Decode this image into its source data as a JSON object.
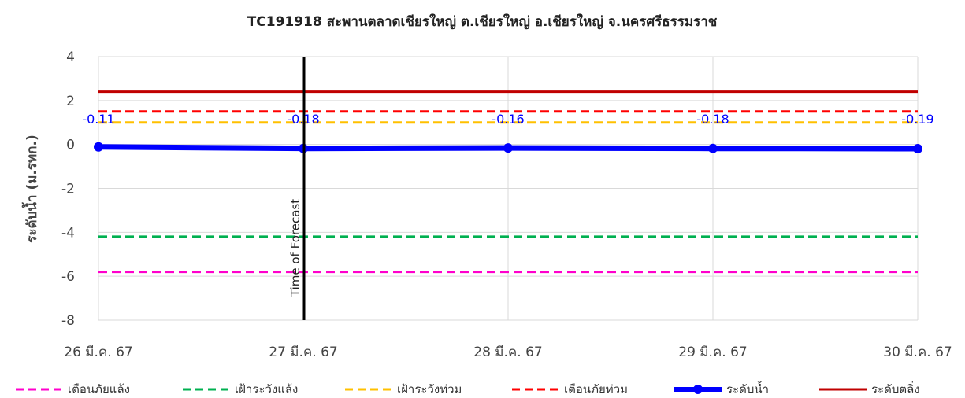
{
  "chart_data": {
    "type": "line",
    "title": "TC191918 สะพานตลาดเชียรใหญ่ ต.เชียรใหญ่ อ.เชียรใหญ่ จ.นครศรีธรรมราช",
    "xlabel": "",
    "ylabel": "ระดับน้ำ (ม.รทก.)",
    "categories": [
      "26 มี.ค. 67",
      "27 มี.ค. 67",
      "28 มี.ค. 67",
      "29 มี.ค. 67",
      "30 มี.ค. 67"
    ],
    "yticks": [
      4,
      2,
      0,
      -2,
      -4,
      -6,
      -8
    ],
    "ylim": [
      -8,
      4
    ],
    "grid": true,
    "legend_position": "bottom",
    "annotation": "Time of Forecast",
    "forecast_index": 1,
    "series": [
      {
        "name": "เตือนภัยแล้ง",
        "values": [
          -5.8,
          -5.8,
          -5.8,
          -5.8,
          -5.8
        ],
        "color": "#ff00cc",
        "style": "dashed"
      },
      {
        "name": "เฝ้าระวังแล้ง",
        "values": [
          -4.2,
          -4.2,
          -4.2,
          -4.2,
          -4.2
        ],
        "color": "#00b050",
        "style": "dashed"
      },
      {
        "name": "เฝ้าระวังท่วม",
        "values": [
          1.0,
          1.0,
          1.0,
          1.0,
          1.0
        ],
        "color": "#ffc000",
        "style": "dashed"
      },
      {
        "name": "เตือนภัยท่วม",
        "values": [
          1.5,
          1.5,
          1.5,
          1.5,
          1.5
        ],
        "color": "#ff0000",
        "style": "dashed"
      },
      {
        "name": "ระดับน้ำ",
        "values": [
          -0.11,
          -0.18,
          -0.16,
          -0.18,
          -0.19
        ],
        "labels": [
          "-0.11",
          "-0.18",
          "-0.16",
          "-0.18",
          "-0.19"
        ],
        "color": "#0000ff",
        "style": "solid-markers"
      },
      {
        "name": "ระดับตลิ่ง",
        "values": [
          2.4,
          2.4,
          2.4,
          2.4,
          2.4
        ],
        "color": "#c00000",
        "style": "solid"
      }
    ]
  }
}
